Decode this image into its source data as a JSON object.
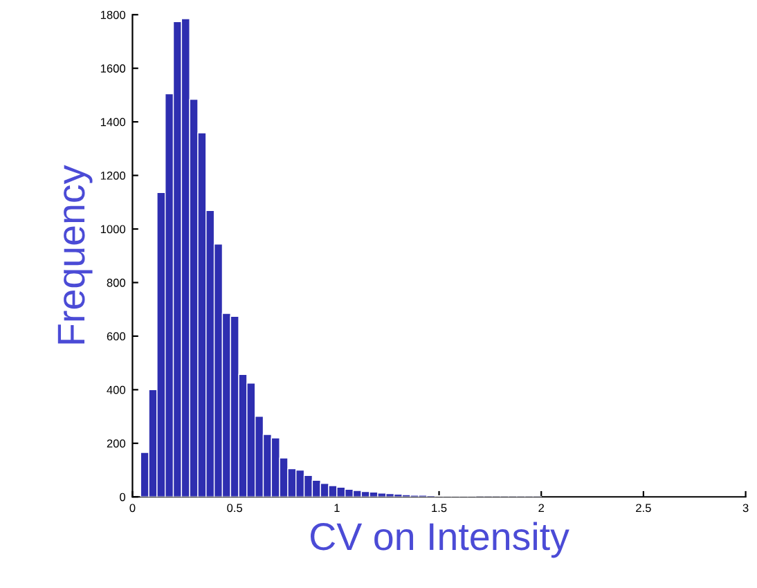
{
  "chart_data": {
    "type": "histogram",
    "xlabel": "CV on Intensity",
    "ylabel": "Frequency",
    "bins": [
      0.04,
      0.08,
      0.12,
      0.16,
      0.2,
      0.24,
      0.28,
      0.32,
      0.36,
      0.4,
      0.44,
      0.48,
      0.52,
      0.56,
      0.6,
      0.64,
      0.68,
      0.72,
      0.76,
      0.8,
      0.84,
      0.88,
      0.92,
      0.96,
      1.0,
      1.04,
      1.08,
      1.12,
      1.16,
      1.2,
      1.24,
      1.28,
      1.32,
      1.36,
      1.4,
      1.44,
      1.48,
      1.52,
      1.56,
      1.6,
      1.64,
      1.68,
      1.72,
      1.76,
      1.8,
      1.84,
      1.88,
      1.92,
      1.96,
      2.0
    ],
    "values": [
      166,
      400,
      1136,
      1505,
      1774,
      1785,
      1484,
      1359,
      1069,
      944,
      685,
      674,
      457,
      425,
      301,
      233,
      220,
      145,
      105,
      100,
      80,
      62,
      50,
      42,
      36,
      28,
      24,
      20,
      18,
      14,
      12,
      10,
      8,
      6,
      6,
      5,
      4,
      3,
      2,
      2,
      2,
      1,
      1,
      1,
      1,
      1,
      1,
      1,
      1
    ],
    "color": "#2e2eb0",
    "xlim": [
      0,
      3
    ],
    "xticks": [
      0,
      0.5,
      1,
      1.5,
      2,
      2.5,
      3
    ],
    "ylim": [
      0,
      1800
    ],
    "yticks": [
      0,
      200,
      400,
      600,
      800,
      1000,
      1200,
      1400,
      1600,
      1800
    ],
    "grid": false
  }
}
